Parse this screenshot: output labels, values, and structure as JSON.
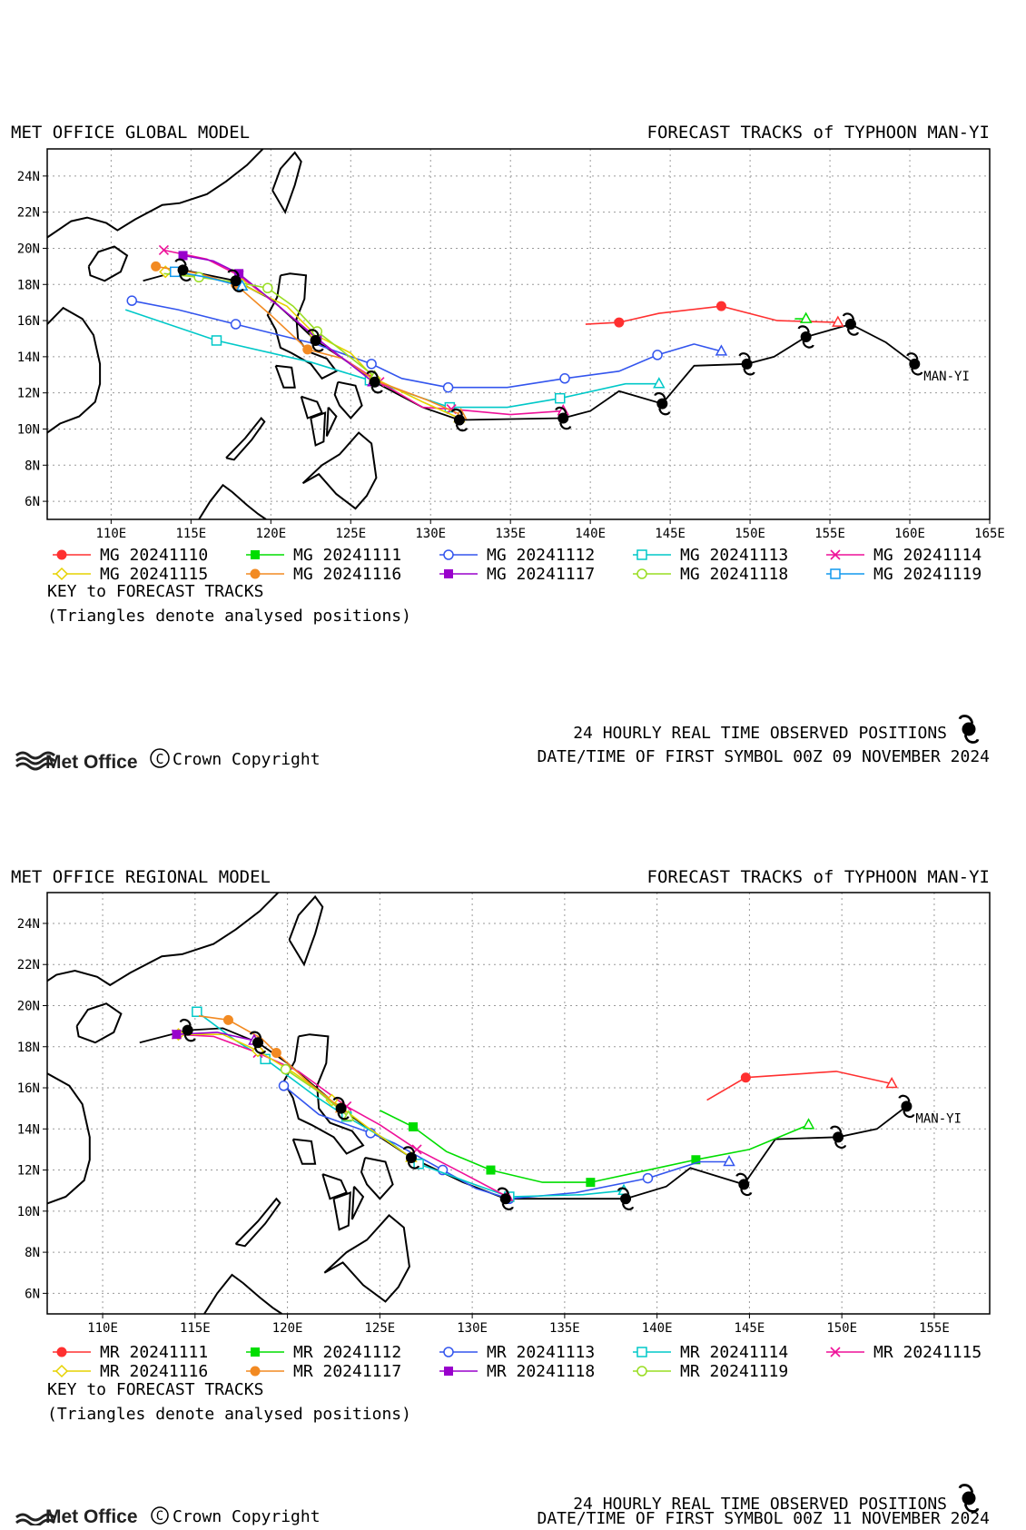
{
  "panels": [
    {
      "id": "global",
      "title_left": "MET OFFICE GLOBAL MODEL",
      "title_right": "FORECAST TRACKS of TYPHOON MAN-YI",
      "storm_label": "MAN-YI",
      "lon_range": [
        106,
        165
      ],
      "lat_range": [
        5,
        25.5
      ],
      "lon_ticks": [
        "110E",
        "115E",
        "120E",
        "125E",
        "130E",
        "135E",
        "140E",
        "145E",
        "150E",
        "155E",
        "160E",
        "165E"
      ],
      "lat_ticks": [
        "24N",
        "22N",
        "20N",
        "18N",
        "16N",
        "14N",
        "12N",
        "10N",
        "8N",
        "6N"
      ],
      "legend": [
        {
          "label": "MG 20241110",
          "color": "#ff3030",
          "marker": "circle-filled"
        },
        {
          "label": "MG 20241111",
          "color": "#00dd00",
          "marker": "square-filled"
        },
        {
          "label": "MG 20241112",
          "color": "#3355ee",
          "marker": "circle-open"
        },
        {
          "label": "MG 20241113",
          "color": "#00c8c8",
          "marker": "square-open"
        },
        {
          "label": "MG 20241114",
          "color": "#ee1199",
          "marker": "cross"
        },
        {
          "label": "MG 20241115",
          "color": "#e6d200",
          "marker": "diamond-open"
        },
        {
          "label": "MG 20241116",
          "color": "#f28a22",
          "marker": "circle-filled"
        },
        {
          "label": "MG 20241117",
          "color": "#9900cc",
          "marker": "square-filled"
        },
        {
          "label": "MG 20241118",
          "color": "#99dd22",
          "marker": "circle-open"
        },
        {
          "label": "MG 20241119",
          "color": "#1199ee",
          "marker": "square-open"
        }
      ],
      "key_title": "KEY to FORECAST TRACKS",
      "key_note": "(Triangles denote analysed positions)",
      "observed_text": "24 HOURLY REAL TIME OBSERVED POSITIONS",
      "first_symbol_text": "DATE/TIME OF FIRST SYMBOL 00Z 09 NOVEMBER 2024",
      "brand": "Met Office",
      "copyright": "Crown Copyright",
      "observed_track": [
        [
          160.3,
          13.6
        ],
        [
          158.5,
          14.8
        ],
        [
          156.3,
          15.8
        ],
        [
          153.5,
          15.1
        ],
        [
          151.5,
          14.0
        ],
        [
          149.8,
          13.6
        ],
        [
          146.5,
          13.5
        ],
        [
          144.5,
          11.4
        ],
        [
          141.8,
          12.1
        ],
        [
          140,
          11.0
        ],
        [
          138.3,
          10.6
        ],
        [
          131.8,
          10.5
        ],
        [
          129.5,
          11.2
        ],
        [
          126.5,
          12.6
        ],
        [
          125,
          13.6
        ],
        [
          122.8,
          14.9
        ],
        [
          121.5,
          16.0
        ],
        [
          120,
          17.2
        ],
        [
          117.8,
          18.2
        ],
        [
          114.5,
          18.8
        ],
        [
          112,
          18.2
        ]
      ],
      "observed_symbols": [
        [
          160.3,
          13.6
        ],
        [
          156.3,
          15.8
        ],
        [
          153.5,
          15.1
        ],
        [
          149.8,
          13.6
        ],
        [
          144.5,
          11.4
        ],
        [
          138.3,
          10.6
        ],
        [
          131.8,
          10.5
        ],
        [
          126.5,
          12.6
        ],
        [
          122.8,
          14.9
        ],
        [
          117.8,
          18.2
        ],
        [
          114.5,
          18.8
        ]
      ],
      "tracks": [
        {
          "color": "#ff3030",
          "marker": "circle-filled",
          "points": [
            [
              155.5,
              15.9
            ],
            [
              151.7,
              16.0
            ],
            [
              148.2,
              16.8
            ],
            [
              144.3,
              16.4
            ],
            [
              141.8,
              15.9
            ],
            [
              139.7,
              15.8
            ]
          ]
        },
        {
          "color": "#00dd00",
          "marker": "square-filled",
          "points": [
            [
              153.5,
              16.1
            ],
            [
              152.8,
              16.1
            ]
          ]
        },
        {
          "color": "#3355ee",
          "marker": "circle-open",
          "points": [
            [
              148.2,
              14.3
            ],
            [
              146.5,
              14.7
            ],
            [
              144.2,
              14.1
            ],
            [
              141.8,
              13.2
            ],
            [
              138.4,
              12.8
            ],
            [
              134.8,
              12.3
            ],
            [
              131.1,
              12.3
            ],
            [
              128.2,
              12.8
            ],
            [
              126.3,
              13.6
            ],
            [
              122.8,
              14.7
            ],
            [
              117.8,
              15.8
            ],
            [
              114.2,
              16.6
            ],
            [
              111.3,
              17.1
            ]
          ]
        },
        {
          "color": "#00c8c8",
          "marker": "square-open",
          "points": [
            [
              144.3,
              12.5
            ],
            [
              142.2,
              12.5
            ],
            [
              138.1,
              11.7
            ],
            [
              134.8,
              11.2
            ],
            [
              131.2,
              11.2
            ],
            [
              128.2,
              12.1
            ],
            [
              126.2,
              12.7
            ],
            [
              122.5,
              13.7
            ],
            [
              116.6,
              14.9
            ],
            [
              110.9,
              16.6
            ]
          ]
        },
        {
          "color": "#ee1199",
          "marker": "cross",
          "points": [
            [
              138.3,
              11.0
            ],
            [
              135,
              10.8
            ],
            [
              131.3,
              11.1
            ],
            [
              129.5,
              11.2
            ],
            [
              126.8,
              12.6
            ],
            [
              124,
              14.2
            ],
            [
              122.8,
              15.1
            ],
            [
              120.5,
              16.8
            ],
            [
              118,
              18.5
            ],
            [
              116,
              19.4
            ],
            [
              113.3,
              19.9
            ]
          ]
        },
        {
          "color": "#e6d200",
          "marker": "diamond-open",
          "points": [
            [
              131.8,
              10.6
            ],
            [
              129.5,
              11.5
            ],
            [
              126.5,
              12.8
            ],
            [
              125,
              14.2
            ],
            [
              122.8,
              15.2
            ],
            [
              121,
              16.8
            ],
            [
              118.2,
              18.0
            ],
            [
              116,
              18.4
            ],
            [
              113.4,
              18.7
            ]
          ]
        },
        {
          "color": "#f28a22",
          "marker": "circle-filled",
          "points": [
            [
              131.9,
              10.8
            ],
            [
              129.8,
              11.6
            ],
            [
              126.5,
              12.7
            ],
            [
              124.5,
              13.9
            ],
            [
              122.3,
              14.4
            ],
            [
              120,
              16.3
            ],
            [
              117.8,
              18.0
            ],
            [
              115.5,
              18.6
            ],
            [
              112.8,
              19.0
            ]
          ]
        },
        {
          "color": "#9900cc",
          "marker": "square-filled",
          "points": [
            [
              126.4,
              12.6
            ],
            [
              124.8,
              13.7
            ],
            [
              122.9,
              15.0
            ],
            [
              120.5,
              16.8
            ],
            [
              118,
              18.6
            ],
            [
              116.4,
              19.3
            ],
            [
              114.5,
              19.6
            ]
          ]
        },
        {
          "color": "#99dd22",
          "marker": "circle-open",
          "points": [
            [
              126.5,
              12.9
            ],
            [
              124.5,
              14.3
            ],
            [
              122.9,
              15.4
            ],
            [
              121.4,
              16.8
            ],
            [
              119.8,
              17.8
            ],
            [
              118,
              18.1
            ],
            [
              115.5,
              18.4
            ],
            [
              113.3,
              18.6
            ]
          ]
        },
        {
          "color": "#1199ee",
          "marker": "square-open",
          "points": [
            [
              118.2,
              17.9
            ],
            [
              116,
              18.4
            ],
            [
              114,
              18.7
            ]
          ]
        }
      ]
    },
    {
      "id": "regional",
      "title_left": "MET OFFICE REGIONAL MODEL",
      "title_right": "FORECAST TRACKS of TYPHOON MAN-YI",
      "storm_label": "MAN-YI",
      "lon_range": [
        107,
        158
      ],
      "lat_range": [
        5,
        25.5
      ],
      "lon_ticks": [
        "110E",
        "115E",
        "120E",
        "125E",
        "130E",
        "135E",
        "140E",
        "145E",
        "150E",
        "155E"
      ],
      "lat_ticks": [
        "24N",
        "22N",
        "20N",
        "18N",
        "16N",
        "14N",
        "12N",
        "10N",
        "8N",
        "6N"
      ],
      "legend": [
        {
          "label": "MR 20241111",
          "color": "#ff3030",
          "marker": "circle-filled"
        },
        {
          "label": "MR 20241112",
          "color": "#00dd00",
          "marker": "square-filled"
        },
        {
          "label": "MR 20241113",
          "color": "#3355ee",
          "marker": "circle-open"
        },
        {
          "label": "MR 20241114",
          "color": "#00c8c8",
          "marker": "square-open"
        },
        {
          "label": "MR 20241115",
          "color": "#ee1199",
          "marker": "cross"
        },
        {
          "label": "MR 20241116",
          "color": "#e6d200",
          "marker": "diamond-open"
        },
        {
          "label": "MR 20241117",
          "color": "#f28a22",
          "marker": "circle-filled"
        },
        {
          "label": "MR 20241118",
          "color": "#9900cc",
          "marker": "square-filled"
        },
        {
          "label": "MR 20241119",
          "color": "#99dd22",
          "marker": "circle-open"
        }
      ],
      "key_title": "KEY to FORECAST TRACKS",
      "key_note": "(Triangles denote analysed positions)",
      "observed_text": "24 HOURLY REAL TIME OBSERVED POSITIONS",
      "first_symbol_text": "DATE/TIME OF FIRST SYMBOL 00Z 11 NOVEMBER 2024",
      "brand": "Met Office",
      "copyright": "Crown Copyright",
      "observed_track": [
        [
          153.5,
          15.1
        ],
        [
          151.9,
          14.0
        ],
        [
          149.8,
          13.6
        ],
        [
          146.4,
          13.5
        ],
        [
          144.7,
          11.3
        ],
        [
          141.8,
          12.1
        ],
        [
          140.5,
          11.2
        ],
        [
          138.3,
          10.6
        ],
        [
          131.8,
          10.6
        ],
        [
          129.5,
          11.4
        ],
        [
          126.7,
          12.6
        ],
        [
          125,
          13.6
        ],
        [
          122.9,
          15.0
        ],
        [
          121.3,
          16.2
        ],
        [
          120,
          17.2
        ],
        [
          118.4,
          18.2
        ],
        [
          116.5,
          18.9
        ],
        [
          114.6,
          18.8
        ],
        [
          112,
          18.2
        ]
      ],
      "observed_symbols": [
        [
          153.5,
          15.1
        ],
        [
          149.8,
          13.6
        ],
        [
          144.7,
          11.3
        ],
        [
          138.3,
          10.6
        ],
        [
          131.8,
          10.6
        ],
        [
          126.7,
          12.6
        ],
        [
          122.9,
          15.0
        ],
        [
          118.4,
          18.2
        ],
        [
          114.6,
          18.8
        ]
      ],
      "tracks": [
        {
          "color": "#ff3030",
          "marker": "circle-filled",
          "points": [
            [
              152.7,
              16.2
            ],
            [
              149.7,
              16.8
            ],
            [
              144.8,
              16.5
            ],
            [
              142.7,
              15.4
            ]
          ]
        },
        {
          "color": "#00dd00",
          "marker": "square-filled",
          "points": [
            [
              148.2,
              14.2
            ],
            [
              145,
              13.0
            ],
            [
              142.1,
              12.5
            ],
            [
              139,
              11.9
            ],
            [
              136.4,
              11.4
            ],
            [
              133.8,
              11.4
            ],
            [
              131,
              12.0
            ],
            [
              128.6,
              12.9
            ],
            [
              126.8,
              14.1
            ],
            [
              125,
              14.9
            ]
          ]
        },
        {
          "color": "#3355ee",
          "marker": "circle-open",
          "points": [
            [
              143.9,
              12.4
            ],
            [
              142.3,
              12.4
            ],
            [
              139.5,
              11.6
            ],
            [
              135.6,
              10.9
            ],
            [
              132,
              10.6
            ],
            [
              130.2,
              11.1
            ],
            [
              128.4,
              12.0
            ],
            [
              125.8,
              13.3
            ],
            [
              124.5,
              13.8
            ],
            [
              121.7,
              14.7
            ],
            [
              119.8,
              16.1
            ]
          ]
        },
        {
          "color": "#00c8c8",
          "marker": "square-open",
          "points": [
            [
              138.2,
              11.0
            ],
            [
              136,
              10.8
            ],
            [
              132,
              10.7
            ],
            [
              129.8,
              11.4
            ],
            [
              127.1,
              12.3
            ],
            [
              125.5,
              13.4
            ],
            [
              123.2,
              14.6
            ],
            [
              121.5,
              15.6
            ],
            [
              118.8,
              17.4
            ],
            [
              117.2,
              18.3
            ],
            [
              115.1,
              19.7
            ]
          ]
        },
        {
          "color": "#ee1199",
          "marker": "cross",
          "points": [
            [
              131.9,
              10.7
            ],
            [
              129.8,
              11.7
            ],
            [
              127,
              13.0
            ],
            [
              125,
              14.2
            ],
            [
              123.2,
              15.1
            ],
            [
              120.6,
              16.8
            ],
            [
              118.4,
              17.7
            ],
            [
              116,
              18.5
            ],
            [
              114,
              18.6
            ]
          ]
        },
        {
          "color": "#e6d200",
          "marker": "diamond-open",
          "points": [
            [
              126.7,
              12.6
            ],
            [
              124.3,
              14.1
            ],
            [
              122.4,
              15.4
            ],
            [
              120.4,
              16.7
            ],
            [
              118.4,
              17.8
            ],
            [
              116.5,
              18.6
            ],
            [
              114.1,
              18.6
            ]
          ]
        },
        {
          "color": "#f28a22",
          "marker": "circle-filled",
          "points": [
            [
              122.9,
              15.0
            ],
            [
              121.1,
              16.3
            ],
            [
              119.4,
              17.7
            ],
            [
              118.6,
              18.4
            ],
            [
              116.8,
              19.3
            ],
            [
              115.2,
              19.5
            ]
          ]
        },
        {
          "color": "#9900cc",
          "marker": "square-filled",
          "points": [
            [
              118.2,
              18.3
            ],
            [
              116.2,
              18.7
            ],
            [
              114,
              18.6
            ]
          ]
        },
        {
          "color": "#99dd22",
          "marker": "circle-open",
          "points": [
            [
              123.3,
              14.6
            ],
            [
              121.7,
              15.8
            ],
            [
              119.9,
              16.9
            ]
          ]
        }
      ]
    }
  ]
}
